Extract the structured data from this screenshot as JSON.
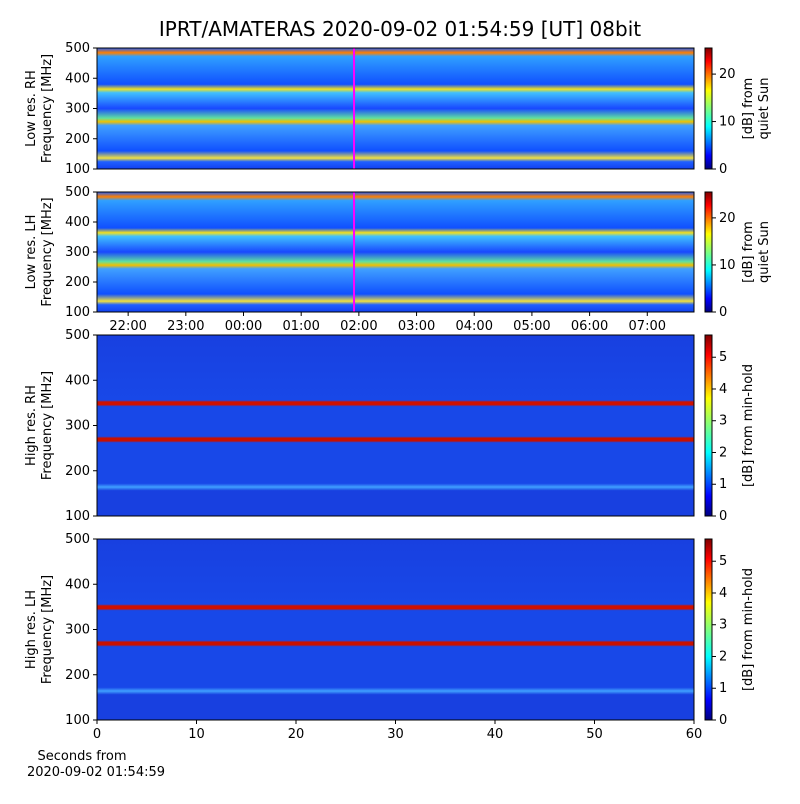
{
  "chart_data": [
    {
      "type": "heatmap",
      "title": "IPRT/AMATERAS 2020-09-02 01:54:59 [UT]   08bit",
      "ylabel": [
        "Low res. RH",
        "Frequency [MHz]"
      ],
      "xlim": [
        21.46,
        31.81
      ],
      "ylim": [
        100,
        500
      ],
      "yticks": [
        100,
        200,
        300,
        400,
        500
      ],
      "colorbar": {
        "label": [
          "[dB] from",
          "quiet Sun"
        ],
        "lim": [
          0,
          25.5
        ],
        "ticks": [
          0,
          10,
          20
        ]
      },
      "marker": {
        "x": 25.916,
        "color": "#ff00ff"
      }
    },
    {
      "type": "heatmap",
      "ylabel": [
        "Low res. LH",
        "Frequency [MHz]"
      ],
      "xlim": [
        21.46,
        31.81
      ],
      "xticks": [
        {
          "value": 22,
          "label": "22:00"
        },
        {
          "value": 23,
          "label": "23:00"
        },
        {
          "value": 24,
          "label": "00:00"
        },
        {
          "value": 25,
          "label": "01:00"
        },
        {
          "value": 26,
          "label": "02:00"
        },
        {
          "value": 27,
          "label": "03:00"
        },
        {
          "value": 28,
          "label": "04:00"
        },
        {
          "value": 29,
          "label": "05:00"
        },
        {
          "value": 30,
          "label": "06:00"
        },
        {
          "value": 31,
          "label": "07:00"
        }
      ],
      "ylim": [
        100,
        500
      ],
      "yticks": [
        100,
        200,
        300,
        400,
        500
      ],
      "colorbar": {
        "label": [
          "[dB] from",
          "quiet Sun"
        ],
        "lim": [
          0,
          25.5
        ],
        "ticks": [
          0,
          10,
          20
        ]
      },
      "marker": {
        "x": 25.916,
        "color": "#ff00ff"
      }
    },
    {
      "type": "heatmap",
      "ylabel": [
        "High res. RH",
        "Frequency [MHz]"
      ],
      "xlim": [
        0,
        60
      ],
      "ylim": [
        100,
        500
      ],
      "yticks": [
        100,
        200,
        300,
        400,
        500
      ],
      "colorbar": {
        "label": [
          "[dB] from min-hold"
        ],
        "lim": [
          0,
          5.7
        ],
        "ticks": [
          0,
          1,
          2,
          3,
          4,
          5
        ]
      }
    },
    {
      "type": "heatmap",
      "ylabel": [
        "High res. LH",
        "Frequency [MHz]"
      ],
      "xlim": [
        0,
        60
      ],
      "xticks": [
        0,
        10,
        20,
        30,
        40,
        50,
        60
      ],
      "xlabel": [
        "Seconds from",
        "2020-09-02 01:54:59"
      ],
      "ylim": [
        100,
        500
      ],
      "yticks": [
        100,
        200,
        300,
        400,
        500
      ],
      "colorbar": {
        "label": [
          "[dB] from min-hold"
        ],
        "lim": [
          0,
          5.7
        ],
        "ticks": [
          0,
          1,
          2,
          3,
          4,
          5
        ]
      }
    }
  ]
}
